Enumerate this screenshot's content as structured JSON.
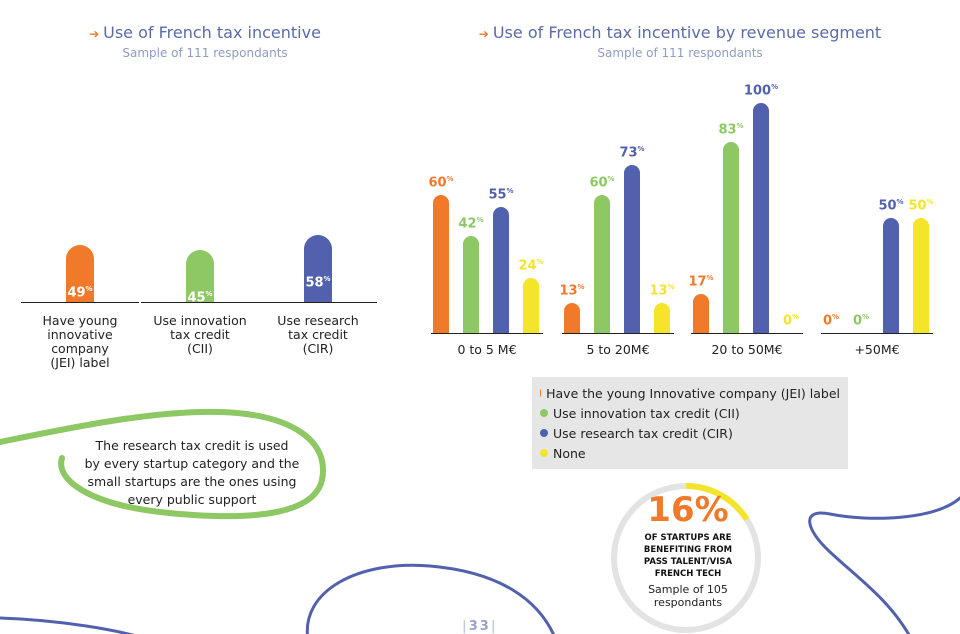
{
  "colors": {
    "jei": "#f07a2a",
    "cii": "#8dc865",
    "cir": "#5261ad",
    "none": "#f4e42a",
    "title": "#5b6aa8",
    "squiggle_green": "#8dc865",
    "squiggle_blue": "#5261ad"
  },
  "left_chart": {
    "title": "Use of French tax incentive",
    "subtitle": "Sample of 111 respondants"
  },
  "right_chart": {
    "title": "Use of French tax incentive by revenue segment",
    "subtitle": "Sample of 111 respondants"
  },
  "percent_sign": "%",
  "chart_data": [
    {
      "type": "bar",
      "title": "Use of French tax incentive",
      "subtitle": "Sample of 111 respondants",
      "categories": [
        "Have young innovative company (JEI) label",
        "Use innovation tax credit (CII)",
        "Use research tax credit (CIR)"
      ],
      "category_lines": [
        [
          "Have young",
          "innovative",
          "company",
          "(JEI) label"
        ],
        [
          "Use innovation",
          "tax credit",
          "(CII)"
        ],
        [
          "Use research",
          "tax credit",
          "(CIR)"
        ]
      ],
      "values": [
        49,
        45,
        58
      ],
      "value_labels": [
        "49",
        "45",
        "58"
      ],
      "colors": [
        "#f07a2a",
        "#8dc865",
        "#5261ad"
      ],
      "unit": "%",
      "ylim": [
        0,
        100
      ]
    },
    {
      "type": "bar",
      "title": "Use of French tax incentive by revenue segment",
      "subtitle": "Sample of 111 respondants",
      "categories": [
        "0 to 5 M€",
        "5 to 20M€",
        "20 to 50M€",
        "+50M€"
      ],
      "series": [
        {
          "name": "Have the young Innovative company (JEI) label",
          "values": [
            60,
            13,
            17,
            0
          ],
          "labels": [
            "60",
            "13",
            "17",
            "0"
          ],
          "color": "#f07a2a"
        },
        {
          "name": "Use innovation tax credit (CII)",
          "values": [
            42,
            60,
            83,
            0
          ],
          "labels": [
            "42",
            "60",
            "83",
            "0"
          ],
          "color": "#8dc865"
        },
        {
          "name": "Use research tax credit (CIR)",
          "values": [
            55,
            73,
            100,
            50
          ],
          "labels": [
            "55",
            "73",
            "100",
            "50"
          ],
          "color": "#5261ad"
        },
        {
          "name": "None",
          "values": [
            24,
            13,
            0,
            50
          ],
          "labels": [
            "24",
            "13",
            "0",
            "50"
          ],
          "color": "#f4e42a"
        }
      ],
      "unit": "%",
      "ylim": [
        0,
        100
      ],
      "legend_position": "bottom"
    }
  ],
  "note": {
    "text": "The research tax credit is used by every startup category and the small startups are the ones using every public support",
    "lines": [
      "The research tax credit is used",
      "by every startup category and the",
      "small startups are the ones using",
      "every public support"
    ]
  },
  "stat": {
    "value": "16%",
    "fraction": 0.16,
    "caption_lines": [
      "OF STARTUPS ARE",
      "BENEFITING FROM",
      "PASS TALENT/VISA",
      "FRENCH TECH"
    ],
    "sample_lines": [
      "Sample of 105",
      "respondants"
    ]
  },
  "page_number": "33"
}
